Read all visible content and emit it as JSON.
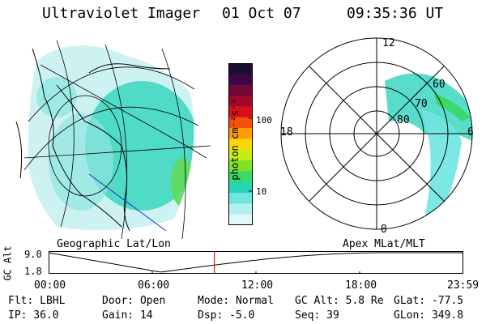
{
  "header": {
    "title": "Ultraviolet Imager",
    "date": "01 Oct 07",
    "time": "09:35:36 UT"
  },
  "left_panel": {
    "caption": "Geographic Lat/Lon"
  },
  "right_panel": {
    "caption": "Apex MLat/MLT",
    "mlt_labels": {
      "top": "12",
      "left": "18",
      "right": "6",
      "bottom": "0"
    },
    "lat_labels": [
      "60",
      "70",
      "80"
    ]
  },
  "colorbar": {
    "unit_label": "photon cm⁻²s⁻¹",
    "tick_100": "100",
    "tick_10": "10",
    "colors": [
      "#1a0f2e",
      "#3a0845",
      "#6e0a3a",
      "#a1082a",
      "#d60f19",
      "#f54f0c",
      "#fc9c09",
      "#fbd60d",
      "#c7ec15",
      "#7fe12a",
      "#3bd86a",
      "#25d6b2",
      "#6ee6e0",
      "#b3f0f0",
      "#e2f8f8"
    ]
  },
  "altitude_plot": {
    "ylabel": "GC Alt",
    "ytick_top": "9.0",
    "ytick_bottom": "1.8",
    "xticks": [
      "00:00",
      "06:00",
      "12:00",
      "18:00",
      "23:59"
    ],
    "marker_time_hours": 9.593
  },
  "status": {
    "flt": "Flt: LBHL",
    "ip": "IP: 36.0",
    "door": "Door: Open",
    "gain": "Gain: 14",
    "mode": "Mode: Normal",
    "dsp": "Dsp:    -5.0",
    "gc_alt": "GC Alt: 5.8 Re",
    "seq": "Seq: 39",
    "glat": "GLat: -77.5",
    "glon": "GLon: 349.8"
  }
}
